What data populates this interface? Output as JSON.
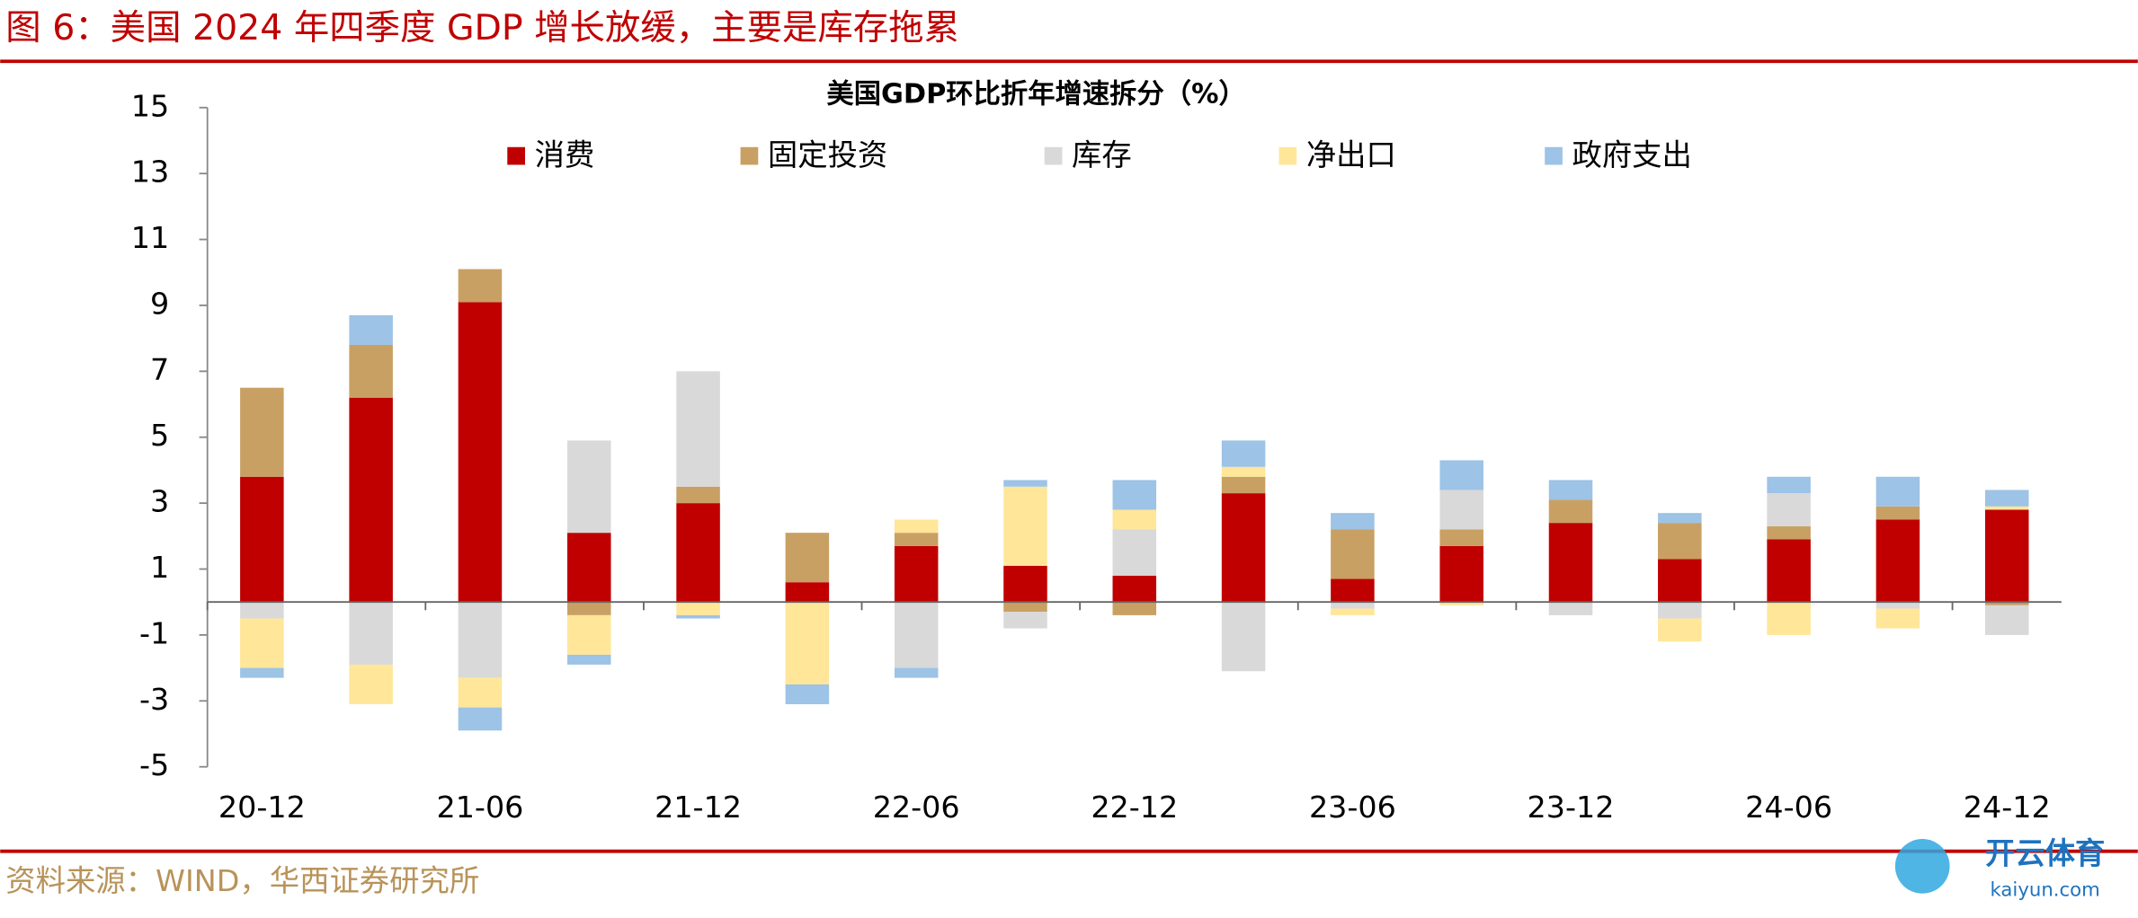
{
  "header": {
    "title": "图 6：美国 2024 年四季度 GDP 增长放缓，主要是库存拖累"
  },
  "chart_data": {
    "type": "stacked-bar",
    "title": "美国GDP环比折年增速拆分（%）",
    "categories": [
      "20-12",
      null,
      "21-06",
      null,
      "21-12",
      null,
      "22-06",
      null,
      "22-12",
      null,
      "23-06",
      null,
      "23-12",
      null,
      "24-06",
      null,
      "24-12"
    ],
    "series": [
      {
        "name": "消费",
        "color": "#C00000",
        "values": [
          3.8,
          6.2,
          9.1,
          2.1,
          3.0,
          0.6,
          1.7,
          1.1,
          0.8,
          3.3,
          0.7,
          1.7,
          2.4,
          1.3,
          1.9,
          2.5,
          2.8
        ]
      },
      {
        "name": "固定投资",
        "color": "#C9A063",
        "values": [
          2.7,
          1.6,
          1.0,
          -0.4,
          0.5,
          1.5,
          0.4,
          -0.3,
          -0.4,
          0.5,
          1.5,
          0.5,
          0.7,
          1.1,
          0.4,
          0.4,
          -0.1
        ]
      },
      {
        "name": "库存",
        "color": "#D9D9D9",
        "values": [
          -0.5,
          -1.9,
          -2.3,
          2.8,
          3.5,
          0,
          -2.0,
          -0.5,
          1.4,
          -2.1,
          -0.2,
          1.2,
          -0.4,
          -0.5,
          1.0,
          -0.2,
          -0.9
        ]
      },
      {
        "name": "净出口",
        "color": "#FFE699",
        "values": [
          -1.5,
          -1.2,
          -0.9,
          -1.2,
          -0.4,
          -2.5,
          0.4,
          2.4,
          0.6,
          0.3,
          -0.2,
          -0.1,
          0,
          -0.7,
          -1.0,
          -0.6,
          0.1
        ]
      },
      {
        "name": "政府支出",
        "color": "#9DC3E6",
        "values": [
          -0.3,
          0.9,
          -0.7,
          -0.3,
          -0.1,
          -0.6,
          -0.3,
          0.2,
          0.9,
          0.8,
          0.5,
          0.9,
          0.6,
          0.3,
          0.5,
          0.9,
          0.5
        ]
      }
    ],
    "ylim": [
      -5,
      15
    ],
    "yticks": [
      -5,
      -3,
      -1,
      1,
      3,
      5,
      7,
      9,
      11,
      13,
      15
    ]
  },
  "footer": {
    "source": "资料来源：WIND，华西证券研究所"
  },
  "watermark": {
    "name": "开云体育",
    "url": "kaiyun.com"
  }
}
